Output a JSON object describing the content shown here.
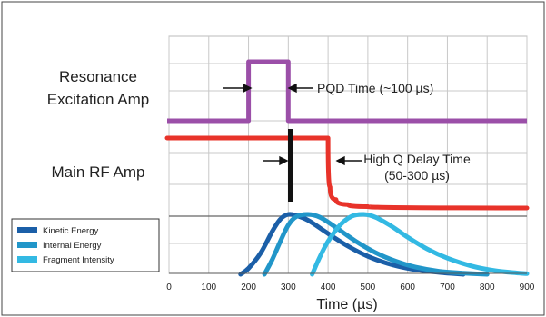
{
  "chart_data": {
    "type": "line",
    "xlabel": "Time (µs)",
    "xlim": [
      0,
      900
    ],
    "x_ticks": [
      "0",
      "100",
      "200",
      "300",
      "400",
      "500",
      "600",
      "700",
      "800",
      "900"
    ],
    "grid": true,
    "legend_position": "bottom-left",
    "row_labels": {
      "resonance_line1": "Resonance",
      "resonance_line2": "Excitation  Amp",
      "main_rf": "Main RF Amp"
    },
    "annotations": {
      "pqd": "PQD Time (~100 µs)",
      "highq_line1": "High Q Delay Time",
      "highq_line2": "(50-300 µs)"
    },
    "resonance_excitation": {
      "color": "#9b4fa8",
      "x": [
        0,
        200,
        200,
        300,
        300,
        900
      ],
      "level": [
        0,
        0,
        1,
        1,
        0,
        0
      ]
    },
    "main_rf": {
      "color": "#e8332a",
      "x": [
        0,
        400,
        405,
        420,
        450,
        500,
        900
      ],
      "level": [
        1,
        1,
        0.3,
        0.12,
        0.05,
        0.02,
        0
      ]
    },
    "series": [
      {
        "name": "Kinetic Energy",
        "color": "#1b5fa8",
        "x": [
          180,
          200,
          230,
          260,
          280,
          300,
          320,
          350,
          400,
          450,
          500,
          550,
          600,
          650,
          700,
          740
        ],
        "y": [
          0.0,
          0.1,
          0.35,
          0.72,
          0.92,
          1.0,
          0.98,
          0.9,
          0.68,
          0.47,
          0.3,
          0.18,
          0.1,
          0.05,
          0.02,
          0.0
        ]
      },
      {
        "name": "Internal Energy",
        "color": "#2196c9",
        "x": [
          240,
          260,
          280,
          300,
          320,
          350,
          380,
          420,
          470,
          520,
          570,
          620,
          680,
          740,
          800
        ],
        "y": [
          0.0,
          0.25,
          0.55,
          0.82,
          0.96,
          1.0,
          0.95,
          0.78,
          0.55,
          0.36,
          0.22,
          0.12,
          0.05,
          0.02,
          0.0
        ]
      },
      {
        "name": "Fragment Intensity",
        "color": "#33b9e3",
        "x": [
          360,
          380,
          400,
          430,
          460,
          490,
          520,
          560,
          600,
          650,
          700,
          760,
          820,
          880,
          900
        ],
        "y": [
          0.0,
          0.3,
          0.55,
          0.82,
          0.97,
          1.0,
          0.95,
          0.8,
          0.62,
          0.42,
          0.27,
          0.14,
          0.06,
          0.02,
          0.01
        ]
      }
    ]
  }
}
